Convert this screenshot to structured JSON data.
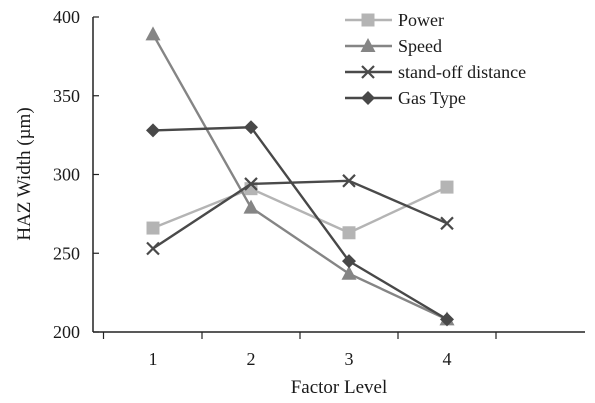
{
  "chart_data": {
    "type": "line",
    "title": "",
    "xlabel": "Factor Level",
    "ylabel": "HAZ Width (µm)",
    "x": [
      1,
      2,
      3,
      4
    ],
    "xticks": [
      "1",
      "2",
      "3",
      "4"
    ],
    "ylim": [
      200,
      400
    ],
    "yticks": [
      "200",
      "250",
      "300",
      "350",
      "400"
    ],
    "grid": false,
    "legend_position": "top-right",
    "series": [
      {
        "name": "Power",
        "values": [
          266,
          291,
          263,
          292
        ],
        "color": "#b4b4b4",
        "marker": "square"
      },
      {
        "name": "Speed",
        "values": [
          389,
          279,
          237,
          208
        ],
        "color": "#858585",
        "marker": "triangle"
      },
      {
        "name": "stand-off distance",
        "values": [
          253,
          294,
          296,
          269
        ],
        "color": "#4a4a4a",
        "marker": "x"
      },
      {
        "name": "Gas Type",
        "values": [
          328,
          330,
          245,
          208
        ],
        "color": "#484848",
        "marker": "diamond"
      }
    ]
  }
}
